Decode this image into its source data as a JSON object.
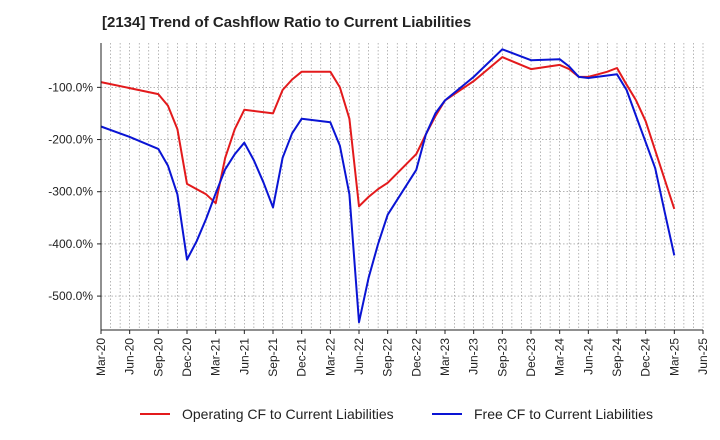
{
  "chart_data": {
    "type": "line",
    "title": "[2134]  Trend of Cashflow Ratio to Current Liabilities",
    "xlabel": "",
    "ylabel": "",
    "x_ticks": [
      "Mar-20",
      "Jun-20",
      "Sep-20",
      "Dec-20",
      "Mar-21",
      "Jun-21",
      "Sep-21",
      "Dec-21",
      "Mar-22",
      "Jun-22",
      "Sep-22",
      "Dec-22",
      "Mar-23",
      "Jun-23",
      "Sep-23",
      "Dec-23",
      "Mar-24",
      "Jun-24",
      "Sep-24",
      "Dec-24",
      "Mar-25",
      "Jun-25"
    ],
    "y_ticks": [
      -100,
      -200,
      -300,
      -400,
      -500
    ],
    "y_tick_labels": [
      "-100.0%",
      "-200.0%",
      "-300.0%",
      "-400.0%",
      "-500.0%"
    ],
    "ylim": [
      -565,
      -15
    ],
    "grid": true,
    "legend_position": "bottom",
    "series": [
      {
        "name": "Operating CF to Current Liabilities",
        "color": "#e31a1c",
        "points": [
          [
            "2020-03",
            -90
          ],
          [
            "2020-09",
            -113
          ],
          [
            "2020-10",
            -135
          ],
          [
            "2020-11",
            -180
          ],
          [
            "2020-12",
            -285
          ],
          [
            "2021-01",
            -295
          ],
          [
            "2021-02",
            -305
          ],
          [
            "2021-03",
            -322
          ],
          [
            "2021-04",
            -235
          ],
          [
            "2021-05",
            -180
          ],
          [
            "2021-06",
            -143
          ],
          [
            "2021-09",
            -150
          ],
          [
            "2021-10",
            -105
          ],
          [
            "2021-11",
            -85
          ],
          [
            "2021-12",
            -70
          ],
          [
            "2022-03",
            -70
          ],
          [
            "2022-04",
            -100
          ],
          [
            "2022-05",
            -160
          ],
          [
            "2022-06",
            -328
          ],
          [
            "2022-07",
            -310
          ],
          [
            "2022-08",
            -295
          ],
          [
            "2022-09",
            -283
          ],
          [
            "2022-12",
            -228
          ],
          [
            "2023-01",
            -190
          ],
          [
            "2023-02",
            -155
          ],
          [
            "2023-03",
            -125
          ],
          [
            "2023-06",
            -88
          ],
          [
            "2023-09",
            -42
          ],
          [
            "2023-12",
            -65
          ],
          [
            "2024-03",
            -57
          ],
          [
            "2024-04",
            -65
          ],
          [
            "2024-05",
            -80
          ],
          [
            "2024-06",
            -80
          ],
          [
            "2024-07",
            -75
          ],
          [
            "2024-08",
            -70
          ],
          [
            "2024-09",
            -63
          ],
          [
            "2024-10",
            -95
          ],
          [
            "2024-11",
            -125
          ],
          [
            "2024-12",
            -165
          ],
          [
            "2025-03",
            -333
          ]
        ]
      },
      {
        "name": "Free CF to Current Liabilities",
        "color": "#0a14d4",
        "points": [
          [
            "2020-03",
            -175
          ],
          [
            "2020-06",
            -195
          ],
          [
            "2020-09",
            -218
          ],
          [
            "2020-10",
            -250
          ],
          [
            "2020-11",
            -305
          ],
          [
            "2020-12",
            -430
          ],
          [
            "2021-01",
            -395
          ],
          [
            "2021-02",
            -352
          ],
          [
            "2021-03",
            -303
          ],
          [
            "2021-04",
            -257
          ],
          [
            "2021-05",
            -228
          ],
          [
            "2021-06",
            -206
          ],
          [
            "2021-07",
            -240
          ],
          [
            "2021-08",
            -282
          ],
          [
            "2021-09",
            -330
          ],
          [
            "2021-10",
            -235
          ],
          [
            "2021-11",
            -188
          ],
          [
            "2021-12",
            -160
          ],
          [
            "2022-03",
            -167
          ],
          [
            "2022-04",
            -212
          ],
          [
            "2022-05",
            -305
          ],
          [
            "2022-06",
            -550
          ],
          [
            "2022-07",
            -465
          ],
          [
            "2022-08",
            -400
          ],
          [
            "2022-09",
            -344
          ],
          [
            "2022-12",
            -258
          ],
          [
            "2023-01",
            -190
          ],
          [
            "2023-02",
            -150
          ],
          [
            "2023-03",
            -125
          ],
          [
            "2023-06",
            -80
          ],
          [
            "2023-09",
            -27
          ],
          [
            "2023-12",
            -48
          ],
          [
            "2024-03",
            -46
          ],
          [
            "2024-04",
            -60
          ],
          [
            "2024-05",
            -80
          ],
          [
            "2024-06",
            -82
          ],
          [
            "2024-09",
            -75
          ],
          [
            "2024-10",
            -105
          ],
          [
            "2024-11",
            -155
          ],
          [
            "2025-01",
            -255
          ],
          [
            "2025-02",
            -340
          ],
          [
            "2025-03",
            -422
          ]
        ]
      }
    ]
  }
}
